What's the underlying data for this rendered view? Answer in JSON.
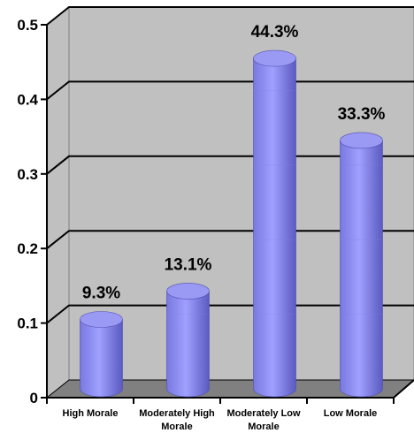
{
  "chart_data": {
    "type": "bar",
    "categories": [
      [
        "High Morale"
      ],
      [
        "Moderately High",
        "Morale"
      ],
      [
        "Moderately Low",
        "Morale"
      ],
      [
        "Low Morale"
      ]
    ],
    "values": [
      0.093,
      0.131,
      0.443,
      0.333
    ],
    "data_labels": [
      "9.3%",
      "13.1%",
      "44.3%",
      "33.3%"
    ],
    "ylim": [
      0,
      0.5
    ],
    "yticks": [
      "0",
      "0.1",
      "0.2",
      "0.3",
      "0.4",
      "0.5"
    ],
    "grid": true,
    "bar_shape": "cylinder",
    "colors": {
      "bar": "#8c8cf0",
      "bar_dark": "#6464cc",
      "bar_top": "#9a9af5",
      "wall": "#c0c0c0",
      "floor": "#808080"
    }
  }
}
